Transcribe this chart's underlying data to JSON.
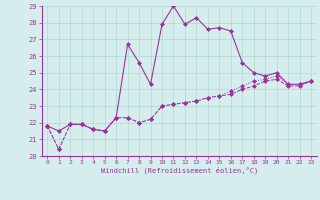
{
  "xlabel": "Windchill (Refroidissement éolien,°C)",
  "xlim": [
    -0.5,
    23.5
  ],
  "ylim": [
    20,
    29
  ],
  "yticks": [
    20,
    21,
    22,
    23,
    24,
    25,
    26,
    27,
    28,
    29
  ],
  "xticks": [
    0,
    1,
    2,
    3,
    4,
    5,
    6,
    7,
    8,
    9,
    10,
    11,
    12,
    13,
    14,
    15,
    16,
    17,
    18,
    19,
    20,
    21,
    22,
    23
  ],
  "background_color": "#d5eeed",
  "grid_color": "#b0d8d0",
  "line_color": "#993399",
  "line1_x": [
    0,
    1,
    2,
    3,
    4,
    5,
    6,
    7,
    8,
    9,
    10,
    11,
    12,
    13,
    14,
    15,
    16,
    17,
    18,
    19,
    20,
    21,
    22,
    23
  ],
  "line1_y": [
    21.8,
    21.5,
    21.9,
    21.9,
    21.6,
    21.5,
    22.3,
    26.7,
    25.6,
    24.3,
    27.9,
    29.0,
    27.9,
    28.3,
    27.6,
    27.7,
    27.5,
    25.6,
    25.0,
    24.8,
    25.0,
    24.3,
    24.3,
    24.5
  ],
  "line2_x": [
    0,
    1,
    2,
    3,
    4,
    5,
    6,
    7,
    8,
    9,
    10,
    11,
    12,
    13,
    14,
    15,
    16,
    17,
    18,
    19,
    20,
    21,
    22,
    23
  ],
  "line2_y": [
    21.8,
    20.4,
    21.9,
    21.9,
    21.6,
    21.5,
    22.3,
    22.3,
    22.0,
    22.2,
    23.0,
    23.1,
    23.2,
    23.3,
    23.5,
    23.6,
    23.7,
    24.0,
    24.2,
    24.5,
    24.6,
    24.2,
    24.2,
    24.5
  ],
  "line3_x": [
    0,
    1,
    2,
    3,
    4,
    5,
    6,
    7,
    8,
    9,
    10,
    11,
    12,
    13,
    14,
    15,
    16,
    17,
    18,
    19,
    20,
    21,
    22,
    23
  ],
  "line3_y": [
    21.8,
    20.4,
    21.9,
    21.9,
    21.6,
    21.5,
    22.3,
    22.3,
    22.0,
    22.2,
    23.0,
    23.1,
    23.2,
    23.3,
    23.5,
    23.6,
    23.9,
    24.2,
    24.5,
    24.6,
    24.8,
    24.3,
    24.3,
    24.5
  ]
}
